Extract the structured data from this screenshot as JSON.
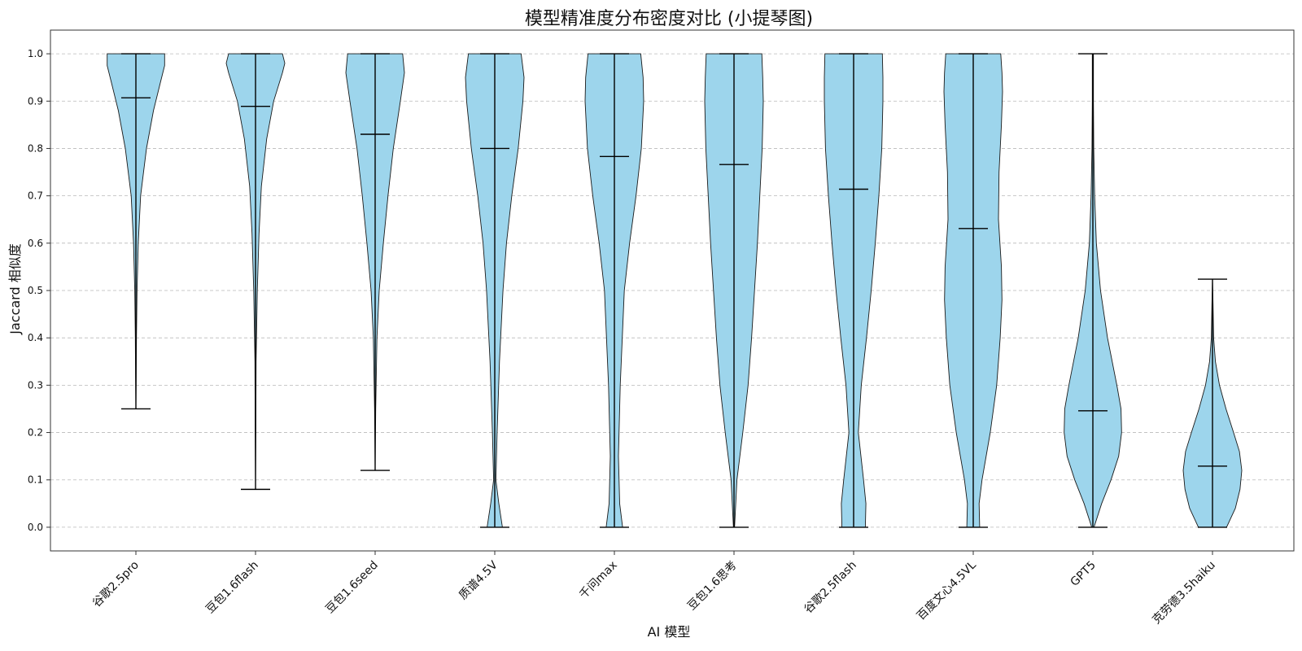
{
  "chart_data": {
    "type": "violin",
    "title": "模型精准度分布密度对比 (小提琴图)",
    "xlabel": "AI 模型",
    "ylabel": "Jaccard 相似度",
    "ylim": [
      -0.05,
      1.05
    ],
    "yticks": [
      "0.0",
      "0.1",
      "0.2",
      "0.3",
      "0.4",
      "0.5",
      "0.6",
      "0.7",
      "0.8",
      "0.9",
      "1.0"
    ],
    "grid": "y-dashed",
    "fill_color": "#9dd5ec",
    "categories": [
      "谷歌2.5pro",
      "豆包1.6flash",
      "豆包1.6seed",
      "质谱4.5V",
      "千问max",
      "豆包1.6思考",
      "谷歌2.5flash",
      "百度文心4.5VL",
      "GPT5",
      "克劳德3.5haiku"
    ],
    "series": [
      {
        "min": 0.25,
        "max": 1.0,
        "mean": 0.907,
        "density": [
          [
            0.25,
            0.0
          ],
          [
            0.32,
            0.01
          ],
          [
            0.4,
            0.02
          ],
          [
            0.5,
            0.04
          ],
          [
            0.6,
            0.08
          ],
          [
            0.7,
            0.16
          ],
          [
            0.8,
            0.36
          ],
          [
            0.88,
            0.6
          ],
          [
            0.94,
            0.84
          ],
          [
            0.975,
            0.98
          ],
          [
            1.0,
            0.98
          ]
        ]
      },
      {
        "min": 0.08,
        "max": 1.0,
        "mean": 0.889,
        "density": [
          [
            0.08,
            0.0
          ],
          [
            0.2,
            0.01
          ],
          [
            0.35,
            0.02
          ],
          [
            0.5,
            0.06
          ],
          [
            0.62,
            0.12
          ],
          [
            0.72,
            0.2
          ],
          [
            0.82,
            0.38
          ],
          [
            0.9,
            0.62
          ],
          [
            0.96,
            0.92
          ],
          [
            0.98,
            1.0
          ],
          [
            1.0,
            0.92
          ]
        ]
      },
      {
        "min": 0.12,
        "max": 1.0,
        "mean": 0.83,
        "density": [
          [
            0.12,
            0.0
          ],
          [
            0.25,
            0.02
          ],
          [
            0.4,
            0.06
          ],
          [
            0.5,
            0.14
          ],
          [
            0.6,
            0.28
          ],
          [
            0.7,
            0.44
          ],
          [
            0.8,
            0.62
          ],
          [
            0.9,
            0.86
          ],
          [
            0.96,
            1.0
          ],
          [
            1.0,
            0.94
          ]
        ]
      },
      {
        "min": 0.0,
        "max": 1.0,
        "mean": 0.8,
        "density": [
          [
            0.0,
            0.26
          ],
          [
            0.05,
            0.14
          ],
          [
            0.1,
            0.04
          ],
          [
            0.2,
            0.08
          ],
          [
            0.35,
            0.16
          ],
          [
            0.5,
            0.28
          ],
          [
            0.6,
            0.4
          ],
          [
            0.7,
            0.58
          ],
          [
            0.8,
            0.8
          ],
          [
            0.9,
            0.96
          ],
          [
            0.95,
            1.0
          ],
          [
            1.0,
            0.9
          ]
        ]
      },
      {
        "min": 0.0,
        "max": 1.0,
        "mean": 0.783,
        "density": [
          [
            0.0,
            0.28
          ],
          [
            0.05,
            0.18
          ],
          [
            0.15,
            0.14
          ],
          [
            0.3,
            0.2
          ],
          [
            0.5,
            0.34
          ],
          [
            0.6,
            0.52
          ],
          [
            0.7,
            0.74
          ],
          [
            0.8,
            0.92
          ],
          [
            0.9,
            1.0
          ],
          [
            0.95,
            0.98
          ],
          [
            1.0,
            0.9
          ]
        ]
      },
      {
        "min": 0.0,
        "max": 1.0,
        "mean": 0.766,
        "density": [
          [
            0.0,
            0.02
          ],
          [
            0.1,
            0.1
          ],
          [
            0.2,
            0.3
          ],
          [
            0.3,
            0.48
          ],
          [
            0.4,
            0.6
          ],
          [
            0.5,
            0.7
          ],
          [
            0.6,
            0.8
          ],
          [
            0.7,
            0.88
          ],
          [
            0.8,
            0.96
          ],
          [
            0.9,
            1.0
          ],
          [
            0.95,
            0.98
          ],
          [
            1.0,
            0.95
          ]
        ]
      },
      {
        "min": 0.0,
        "max": 1.0,
        "mean": 0.714,
        "density": [
          [
            0.0,
            0.4
          ],
          [
            0.05,
            0.42
          ],
          [
            0.1,
            0.34
          ],
          [
            0.2,
            0.16
          ],
          [
            0.3,
            0.26
          ],
          [
            0.4,
            0.44
          ],
          [
            0.5,
            0.6
          ],
          [
            0.6,
            0.74
          ],
          [
            0.7,
            0.86
          ],
          [
            0.8,
            0.96
          ],
          [
            0.9,
            1.0
          ],
          [
            0.95,
            1.0
          ],
          [
            1.0,
            0.98
          ]
        ]
      },
      {
        "min": 0.0,
        "max": 1.0,
        "mean": 0.631,
        "density": [
          [
            0.0,
            0.22
          ],
          [
            0.05,
            0.2
          ],
          [
            0.1,
            0.3
          ],
          [
            0.2,
            0.58
          ],
          [
            0.3,
            0.8
          ],
          [
            0.4,
            0.92
          ],
          [
            0.48,
            0.98
          ],
          [
            0.55,
            0.96
          ],
          [
            0.65,
            0.86
          ],
          [
            0.75,
            0.88
          ],
          [
            0.85,
            0.96
          ],
          [
            0.92,
            1.0
          ],
          [
            0.96,
            0.98
          ],
          [
            1.0,
            0.94
          ]
        ]
      },
      {
        "min": 0.0,
        "max": 1.0,
        "mean": 0.246,
        "density": [
          [
            0.0,
            0.04
          ],
          [
            0.05,
            0.3
          ],
          [
            0.1,
            0.62
          ],
          [
            0.15,
            0.88
          ],
          [
            0.2,
            0.98
          ],
          [
            0.25,
            0.96
          ],
          [
            0.3,
            0.82
          ],
          [
            0.4,
            0.5
          ],
          [
            0.5,
            0.26
          ],
          [
            0.6,
            0.12
          ],
          [
            0.7,
            0.06
          ],
          [
            0.8,
            0.03
          ],
          [
            0.9,
            0.02
          ],
          [
            1.0,
            0.02
          ]
        ]
      },
      {
        "min": 0.0,
        "max": 0.524,
        "mean": 0.129,
        "density": [
          [
            0.0,
            0.48
          ],
          [
            0.04,
            0.78
          ],
          [
            0.08,
            0.94
          ],
          [
            0.12,
            1.0
          ],
          [
            0.16,
            0.92
          ],
          [
            0.2,
            0.72
          ],
          [
            0.25,
            0.46
          ],
          [
            0.3,
            0.24
          ],
          [
            0.35,
            0.1
          ],
          [
            0.4,
            0.04
          ],
          [
            0.47,
            0.02
          ],
          [
            0.524,
            0.0
          ]
        ]
      }
    ]
  }
}
